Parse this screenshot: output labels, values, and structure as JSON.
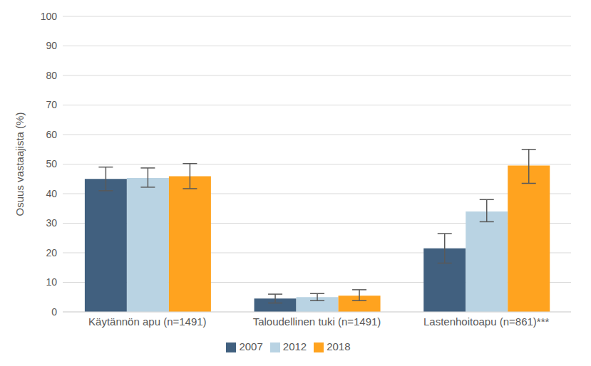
{
  "chart_data": {
    "type": "bar",
    "y_label": "Osuus vastaajista (%)",
    "categories": [
      "Käytännön apu (n=1491)",
      "Taloudellinen tuki (n=1491)",
      "Lastenhoitoapu (n=861)***"
    ],
    "series": [
      {
        "name": "2007",
        "color": "#41607f",
        "values": [
          45,
          4.5,
          21.5
        ],
        "errors": [
          [
            4,
            4
          ],
          [
            1.5,
            1.5
          ],
          [
            5,
            5
          ]
        ]
      },
      {
        "name": "2012",
        "color": "#b9d3e3",
        "values": [
          45.3,
          5,
          34
        ],
        "errors": [
          [
            3.1,
            3.4
          ],
          [
            1.2,
            1.2
          ],
          [
            3.5,
            4
          ]
        ]
      },
      {
        "name": "2018",
        "color": "#ffa31f",
        "values": [
          45.9,
          5.5,
          49.5
        ],
        "errors": [
          [
            4.2,
            4.3
          ],
          [
            1.7,
            2
          ],
          [
            6,
            5.5
          ]
        ]
      }
    ],
    "ylim": [
      0,
      100
    ],
    "yticks": [
      0,
      10,
      20,
      30,
      40,
      50,
      60,
      70,
      80,
      90,
      100
    ],
    "grid": true,
    "legend": "bottom"
  }
}
